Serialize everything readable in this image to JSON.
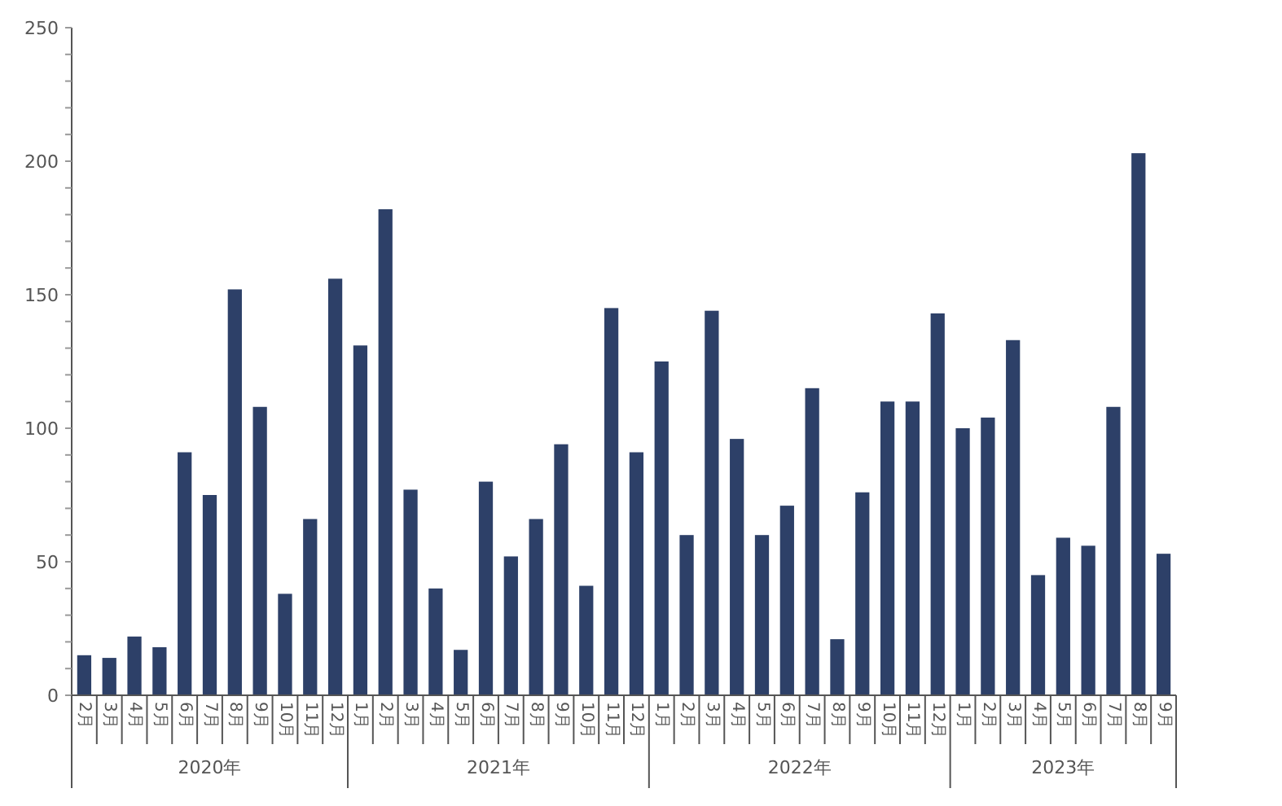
{
  "chart_data": {
    "type": "bar",
    "color": "#2d4068",
    "categories": [
      "2月",
      "3月",
      "4月",
      "5月",
      "6月",
      "7月",
      "8月",
      "9月",
      "10月",
      "11月",
      "12月",
      "1月",
      "2月",
      "3月",
      "4月",
      "5月",
      "6月",
      "7月",
      "8月",
      "9月",
      "10月",
      "11月",
      "12月",
      "1月",
      "2月",
      "3月",
      "4月",
      "5月",
      "6月",
      "7月",
      "8月",
      "9月",
      "10月",
      "11月",
      "12月",
      "1月",
      "2月",
      "3月",
      "4月",
      "5月",
      "6月",
      "7月",
      "8月",
      "9月"
    ],
    "values": [
      15,
      14,
      22,
      18,
      91,
      75,
      152,
      108,
      38,
      66,
      156,
      131,
      182,
      77,
      40,
      17,
      80,
      52,
      66,
      94,
      41,
      145,
      91,
      125,
      60,
      144,
      96,
      60,
      71,
      115,
      21,
      76,
      110,
      110,
      143,
      100,
      104,
      133,
      45,
      59,
      56,
      108,
      203,
      53
    ],
    "annotations": [
      "2020年",
      "2021年",
      "2022年",
      "2023年"
    ],
    "ylim": [
      0,
      250
    ],
    "yticks": [
      0,
      {
        "value": 10,
        "label": null
      },
      {
        "value": 20,
        "label": null
      },
      {
        "value": 30,
        "label": null
      },
      {
        "value": 40,
        "label": null
      },
      50,
      {
        "value": 60,
        "label": null
      },
      {
        "value": 70,
        "label": null
      },
      {
        "value": 80,
        "label": null
      },
      {
        "value": 90,
        "label": null
      },
      100,
      {
        "value": 110,
        "label": null
      },
      {
        "value": 120,
        "label": null
      },
      {
        "value": 130,
        "label": null
      },
      {
        "value": 140,
        "label": null
      },
      150,
      {
        "value": 160,
        "label": null
      },
      {
        "value": 170,
        "label": null
      },
      {
        "value": 180,
        "label": null
      },
      {
        "value": 190,
        "label": null
      },
      200,
      {
        "value": 210,
        "label": null
      },
      {
        "value": 220,
        "label": null
      },
      {
        "value": 230,
        "label": null
      },
      {
        "value": 240,
        "label": null
      },
      250
    ],
    "grid": false
  }
}
